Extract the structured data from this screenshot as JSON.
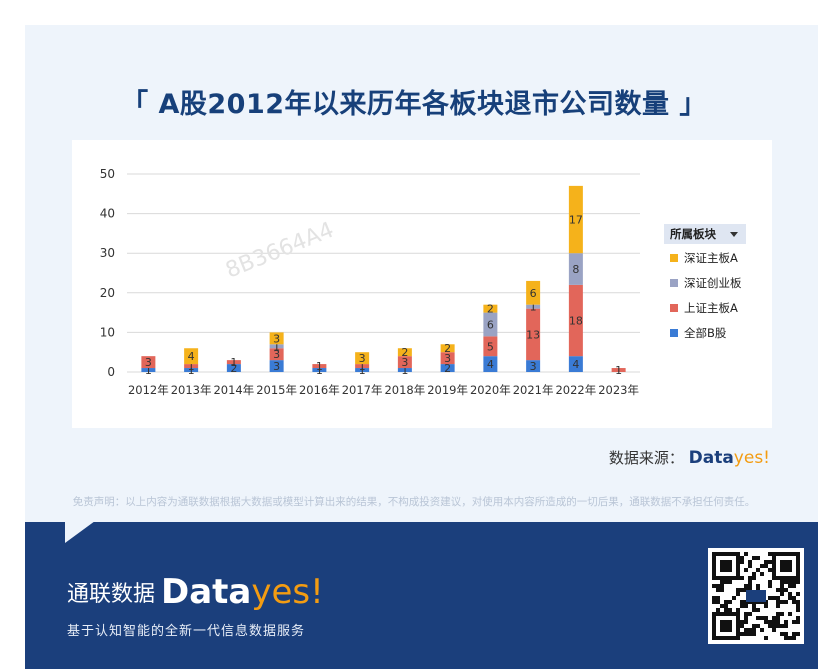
{
  "title": "「 A股2012年以来历年各板块退市公司数量 」",
  "source": {
    "label": "数据来源：",
    "brand_main": "Data",
    "brand_accent": "yes!"
  },
  "disclaimer": "免责声明：以上内容为通联数据根据大数据或模型计算出来的结果，不构成投资建议，对使用本内容所造成的一切后果，通联数据不承担任何责任。",
  "footer": {
    "brand_cn": "通联数据",
    "brand_main": "Data",
    "brand_accent": "yes!",
    "slogan": "基于认知智能的全新一代信息数据服务"
  },
  "watermark": "8B3664A4",
  "colors": {
    "全部B股": "#3a7bd5",
    "上证主板A": "#e2665a",
    "深证创业板": "#9aa3c4",
    "深证主板A": "#f5b21b",
    "title": "#17407a",
    "footer": "#1b3f7c"
  },
  "chart_data": {
    "type": "bar",
    "stacked": true,
    "categories": [
      "2012年",
      "2013年",
      "2014年",
      "2015年",
      "2016年",
      "2017年",
      "2018年",
      "2019年",
      "2020年",
      "2021年",
      "2022年",
      "2023年"
    ],
    "series": [
      {
        "name": "全部B股",
        "values": [
          1,
          1,
          2,
          3,
          1,
          1,
          1,
          2,
          4,
          3,
          4,
          0
        ]
      },
      {
        "name": "上证主板A",
        "values": [
          3,
          1,
          1,
          3,
          1,
          1,
          3,
          3,
          5,
          13,
          18,
          1
        ]
      },
      {
        "name": "深证创业板",
        "values": [
          0,
          0,
          0,
          1,
          0,
          0,
          0,
          0,
          6,
          1,
          8,
          0
        ]
      },
      {
        "name": "深证主板A",
        "values": [
          0,
          4,
          0,
          3,
          0,
          3,
          2,
          2,
          2,
          6,
          17,
          0
        ]
      }
    ],
    "legend_title": "所属板块",
    "legend_order": [
      "深证主板A",
      "深证创业板",
      "上证主板A",
      "全部B股"
    ],
    "legend_position": "right",
    "ylim": [
      0,
      50
    ],
    "yticks": [
      0,
      10,
      20,
      30,
      40,
      50
    ],
    "grid": true
  }
}
